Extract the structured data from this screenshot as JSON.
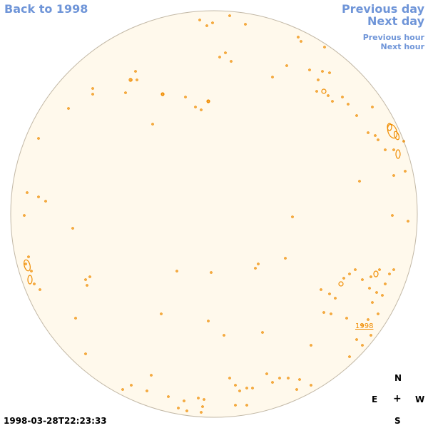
{
  "nav": {
    "back_label": "Back to 1998",
    "prev_day_label": "Previous day",
    "next_day_label": "Next day",
    "prev_hour_label": "Previous hour",
    "next_hour_label": "Next hour"
  },
  "region_label": "1998",
  "compass": {
    "n": "N",
    "e": "E",
    "center": "+",
    "w": "W",
    "s": "S"
  },
  "timestamp": "1998-03-28T22:23:33",
  "colors": {
    "disk_fill": "#fff9ec",
    "disk_stroke": "#c2b8a6",
    "contour": "#f08c00",
    "nav_link": "#6f95d8"
  }
}
